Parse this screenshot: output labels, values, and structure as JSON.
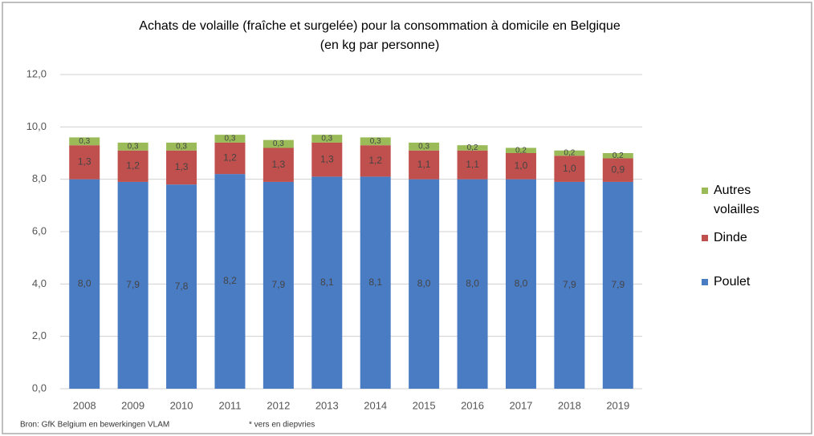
{
  "chart_data": {
    "type": "stacked_bar",
    "title": "Achats de volaille (fraîche et surgelée) pour la consommation à domicile en Belgique",
    "subtitle": "(en kg par personne)",
    "categories": [
      "2008",
      "2009",
      "2010",
      "2011",
      "2012",
      "2013",
      "2014",
      "2015",
      "2016",
      "2017",
      "2018",
      "2019"
    ],
    "series": [
      {
        "name": "Poulet",
        "color": "#4a7cc4",
        "values": [
          8.0,
          7.9,
          7.8,
          8.2,
          7.9,
          8.1,
          8.1,
          8.0,
          8.0,
          8.0,
          7.9,
          7.9
        ],
        "value_labels": [
          "8,0",
          "7,9",
          "7,8",
          "8,2",
          "7,9",
          "8,1",
          "8,1",
          "8,0",
          "8,0",
          "8,0",
          "7,9",
          "7,9"
        ]
      },
      {
        "name": "Dinde",
        "color": "#c0504d",
        "values": [
          1.3,
          1.2,
          1.3,
          1.2,
          1.3,
          1.3,
          1.2,
          1.1,
          1.1,
          1.0,
          1.0,
          0.9
        ],
        "value_labels": [
          "1,3",
          "1,2",
          "1,3",
          "1,2",
          "1,3",
          "1,3",
          "1,2",
          "1,1",
          "1,1",
          "1,0",
          "1,0",
          "0,9"
        ]
      },
      {
        "name": "Autres volailles",
        "color": "#9bbb59",
        "values": [
          0.3,
          0.3,
          0.3,
          0.3,
          0.3,
          0.3,
          0.3,
          0.3,
          0.2,
          0.2,
          0.2,
          0.2
        ],
        "value_labels": [
          "0,3",
          "0,3",
          "0,3",
          "0,3",
          "0,3",
          "0,3",
          "0,3",
          "0,3",
          "0,2",
          "0,2",
          "0,2",
          "0,2"
        ]
      }
    ],
    "ylim": [
      0,
      12
    ],
    "yticks": [
      {
        "value": 0,
        "label": "0,0"
      },
      {
        "value": 2,
        "label": "2,0"
      },
      {
        "value": 4,
        "label": "4,0"
      },
      {
        "value": 6,
        "label": "6,0"
      },
      {
        "value": 8,
        "label": "8,0"
      },
      {
        "value": 10,
        "label": "10,0"
      },
      {
        "value": 12,
        "label": "12,0"
      }
    ],
    "grid": true,
    "legend": "right",
    "source": "Bron: GfK Belgium en bewerkingen VLAM",
    "note": "* vers en diepvries"
  }
}
